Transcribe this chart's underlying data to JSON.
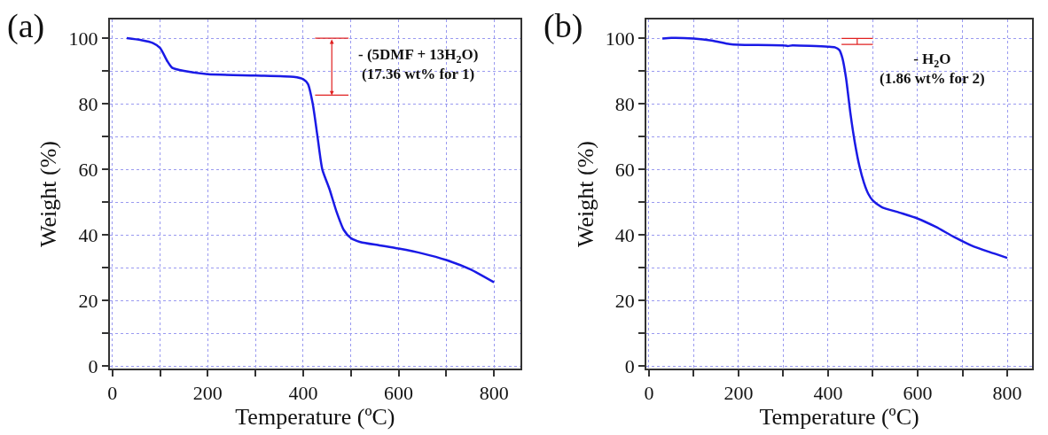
{
  "chart_data": [
    {
      "type": "line",
      "title": "(a)",
      "xlabel": "Temperature (ºC)",
      "ylabel": "Weight (%)",
      "x": [
        30,
        60,
        85,
        100,
        115,
        125,
        150,
        200,
        300,
        380,
        400,
        410,
        420,
        430,
        440,
        455,
        470,
        485,
        500,
        520,
        560,
        600,
        650,
        700,
        750,
        800
      ],
      "series": [
        {
          "color": "#1a1ae6",
          "values": [
            100,
            99.4,
            98.5,
            97,
            93,
            91,
            90,
            89,
            88.6,
            88.2,
            87.5,
            86,
            80,
            70,
            60,
            54,
            47,
            41.5,
            39,
            37.8,
            36.8,
            35.8,
            34.3,
            32.3,
            29.5,
            25.5
          ]
        },
        {
          "color": "#e02020",
          "x": [
            425,
            495
          ],
          "values": [
            100,
            100
          ]
        },
        {
          "color": "#e02020",
          "x": [
            425,
            495
          ],
          "values": [
            82.6,
            82.6
          ]
        }
      ],
      "xlim": [
        -6,
        856
      ],
      "ylim": [
        -0.8,
        105.7
      ],
      "xticks": [
        0,
        {
          "value": 100,
          "label": null
        },
        200,
        {
          "value": 300,
          "label": null
        },
        400,
        {
          "value": 500,
          "label": null
        },
        600,
        {
          "value": 700,
          "label": null
        },
        800
      ],
      "yticks": [
        0,
        {
          "value": 10,
          "label": null
        },
        20,
        {
          "value": 30,
          "label": null
        },
        40,
        {
          "value": 50,
          "label": null
        },
        60,
        {
          "value": 70,
          "label": null
        },
        80,
        {
          "value": 90,
          "label": null
        },
        100
      ],
      "annotations": [
        "- (5DMF + 13H$_{2}$O)",
        "(17.36 wt% for 1)"
      ],
      "grid": true,
      "marker": "none",
      "line_style": "solid"
    },
    {
      "type": "line",
      "title": "(b)",
      "xlabel": "Temperature (ºC)",
      "ylabel": "Weight (%)",
      "x": [
        30,
        50,
        100,
        140,
        180,
        200,
        300,
        310,
        320,
        400,
        415,
        425,
        432,
        440,
        450,
        460,
        470,
        480,
        490,
        500,
        520,
        560,
        600,
        640,
        680,
        720,
        760,
        800
      ],
      "series": [
        {
          "color": "#1a1ae6",
          "values": [
            100,
            100.2,
            100,
            99.4,
            98.3,
            98.1,
            97.9,
            97.7,
            97.9,
            97.5,
            97.3,
            96.5,
            94,
            88,
            77,
            68,
            61,
            56,
            52.5,
            50.5,
            48.5,
            46.8,
            45,
            42.5,
            39.5,
            36.8,
            34.8,
            33
          ]
        },
        {
          "color": "#e02020",
          "x": [
            430,
            500
          ],
          "values": [
            100,
            100
          ]
        },
        {
          "color": "#e02020",
          "x": [
            465,
            465
          ],
          "values": [
            100,
            98.2
          ]
        },
        {
          "color": "#e02020",
          "x": [
            430,
            500
          ],
          "values": [
            98.2,
            98.2
          ]
        }
      ],
      "xlim": [
        -6,
        856
      ],
      "ylim": [
        -0.8,
        105.8
      ],
      "xticks": [
        0,
        {
          "value": 100,
          "label": null
        },
        200,
        {
          "value": 300,
          "label": null
        },
        400,
        {
          "value": 500,
          "label": null
        },
        600,
        {
          "value": 700,
          "label": null
        },
        800
      ],
      "yticks": [
        0,
        {
          "value": 10,
          "label": null
        },
        20,
        {
          "value": 30,
          "label": null
        },
        40,
        {
          "value": 50,
          "label": null
        },
        60,
        {
          "value": 70,
          "label": null
        },
        80,
        {
          "value": 90,
          "label": null
        },
        100
      ],
      "annotations": [
        "- H$_{2}$O",
        "(1.86 wt% for 2)"
      ],
      "grid": true,
      "marker": "none",
      "line_style": "solid"
    }
  ]
}
